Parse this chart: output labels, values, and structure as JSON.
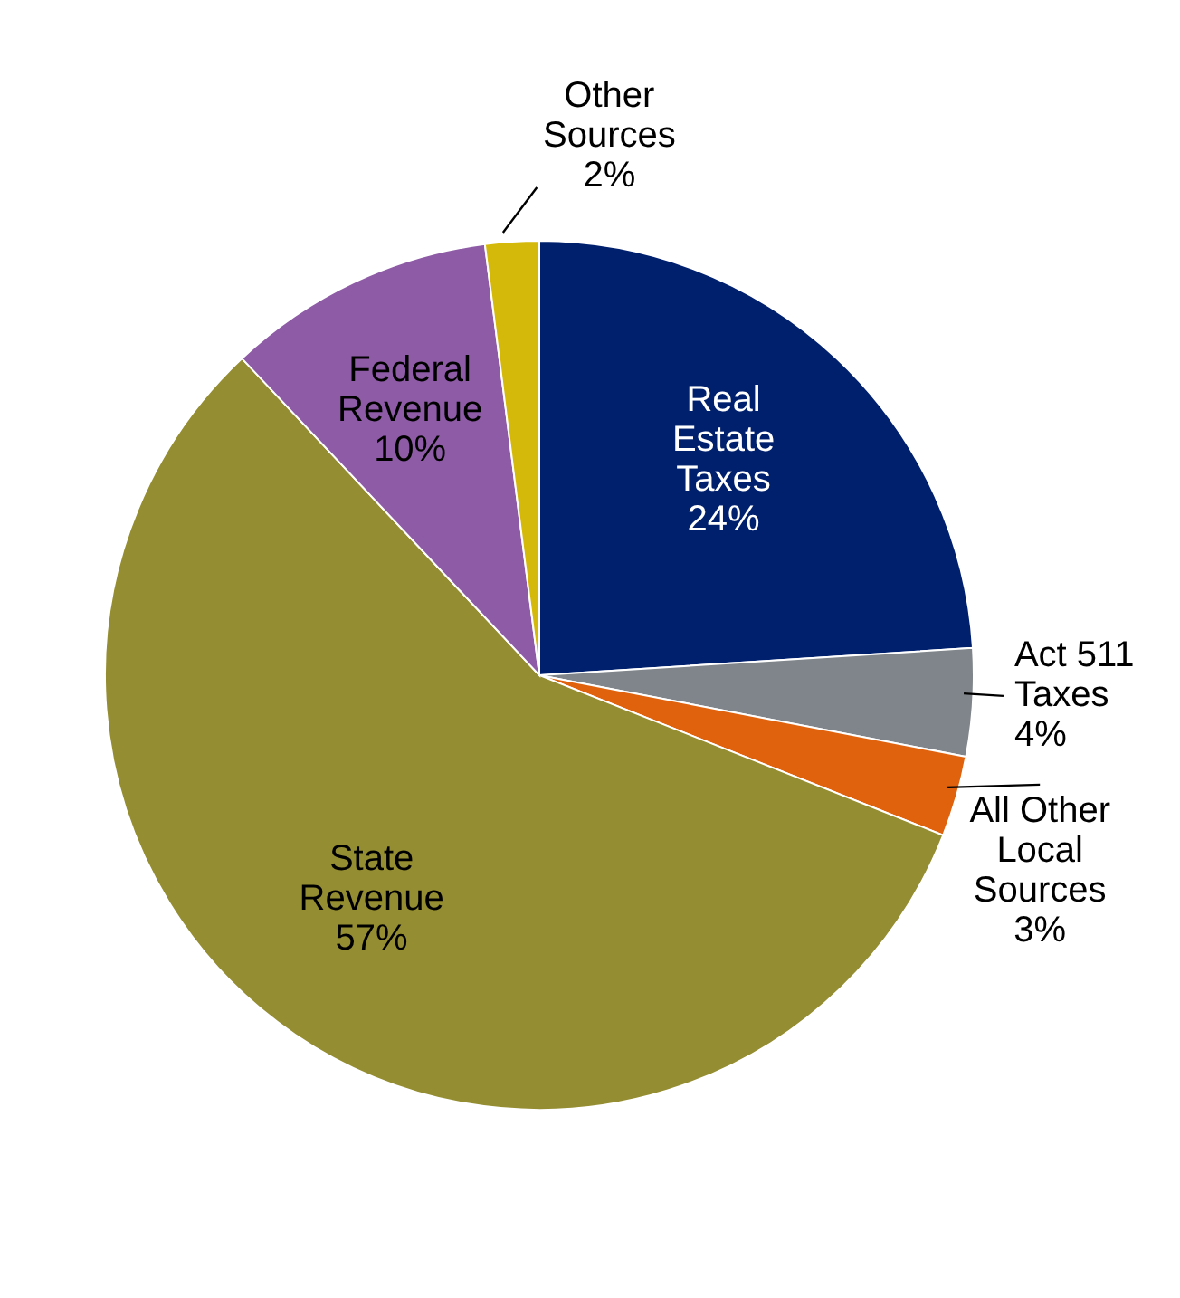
{
  "chart_data": {
    "type": "pie",
    "categories": [
      "Real Estate Taxes",
      "Act 511 Taxes",
      "All Other Local Sources",
      "State Revenue",
      "Federal Revenue",
      "Other Sources"
    ],
    "values": [
      24,
      4,
      3,
      57,
      10,
      2
    ],
    "colors": [
      "#00206e",
      "#7f858a",
      "#e0620d",
      "#948d31",
      "#8e5ba6",
      "#d4b80a"
    ],
    "value_labels": [
      "24%",
      "4%",
      "3%",
      "57%",
      "10%",
      "2%"
    ],
    "legend": false
  }
}
